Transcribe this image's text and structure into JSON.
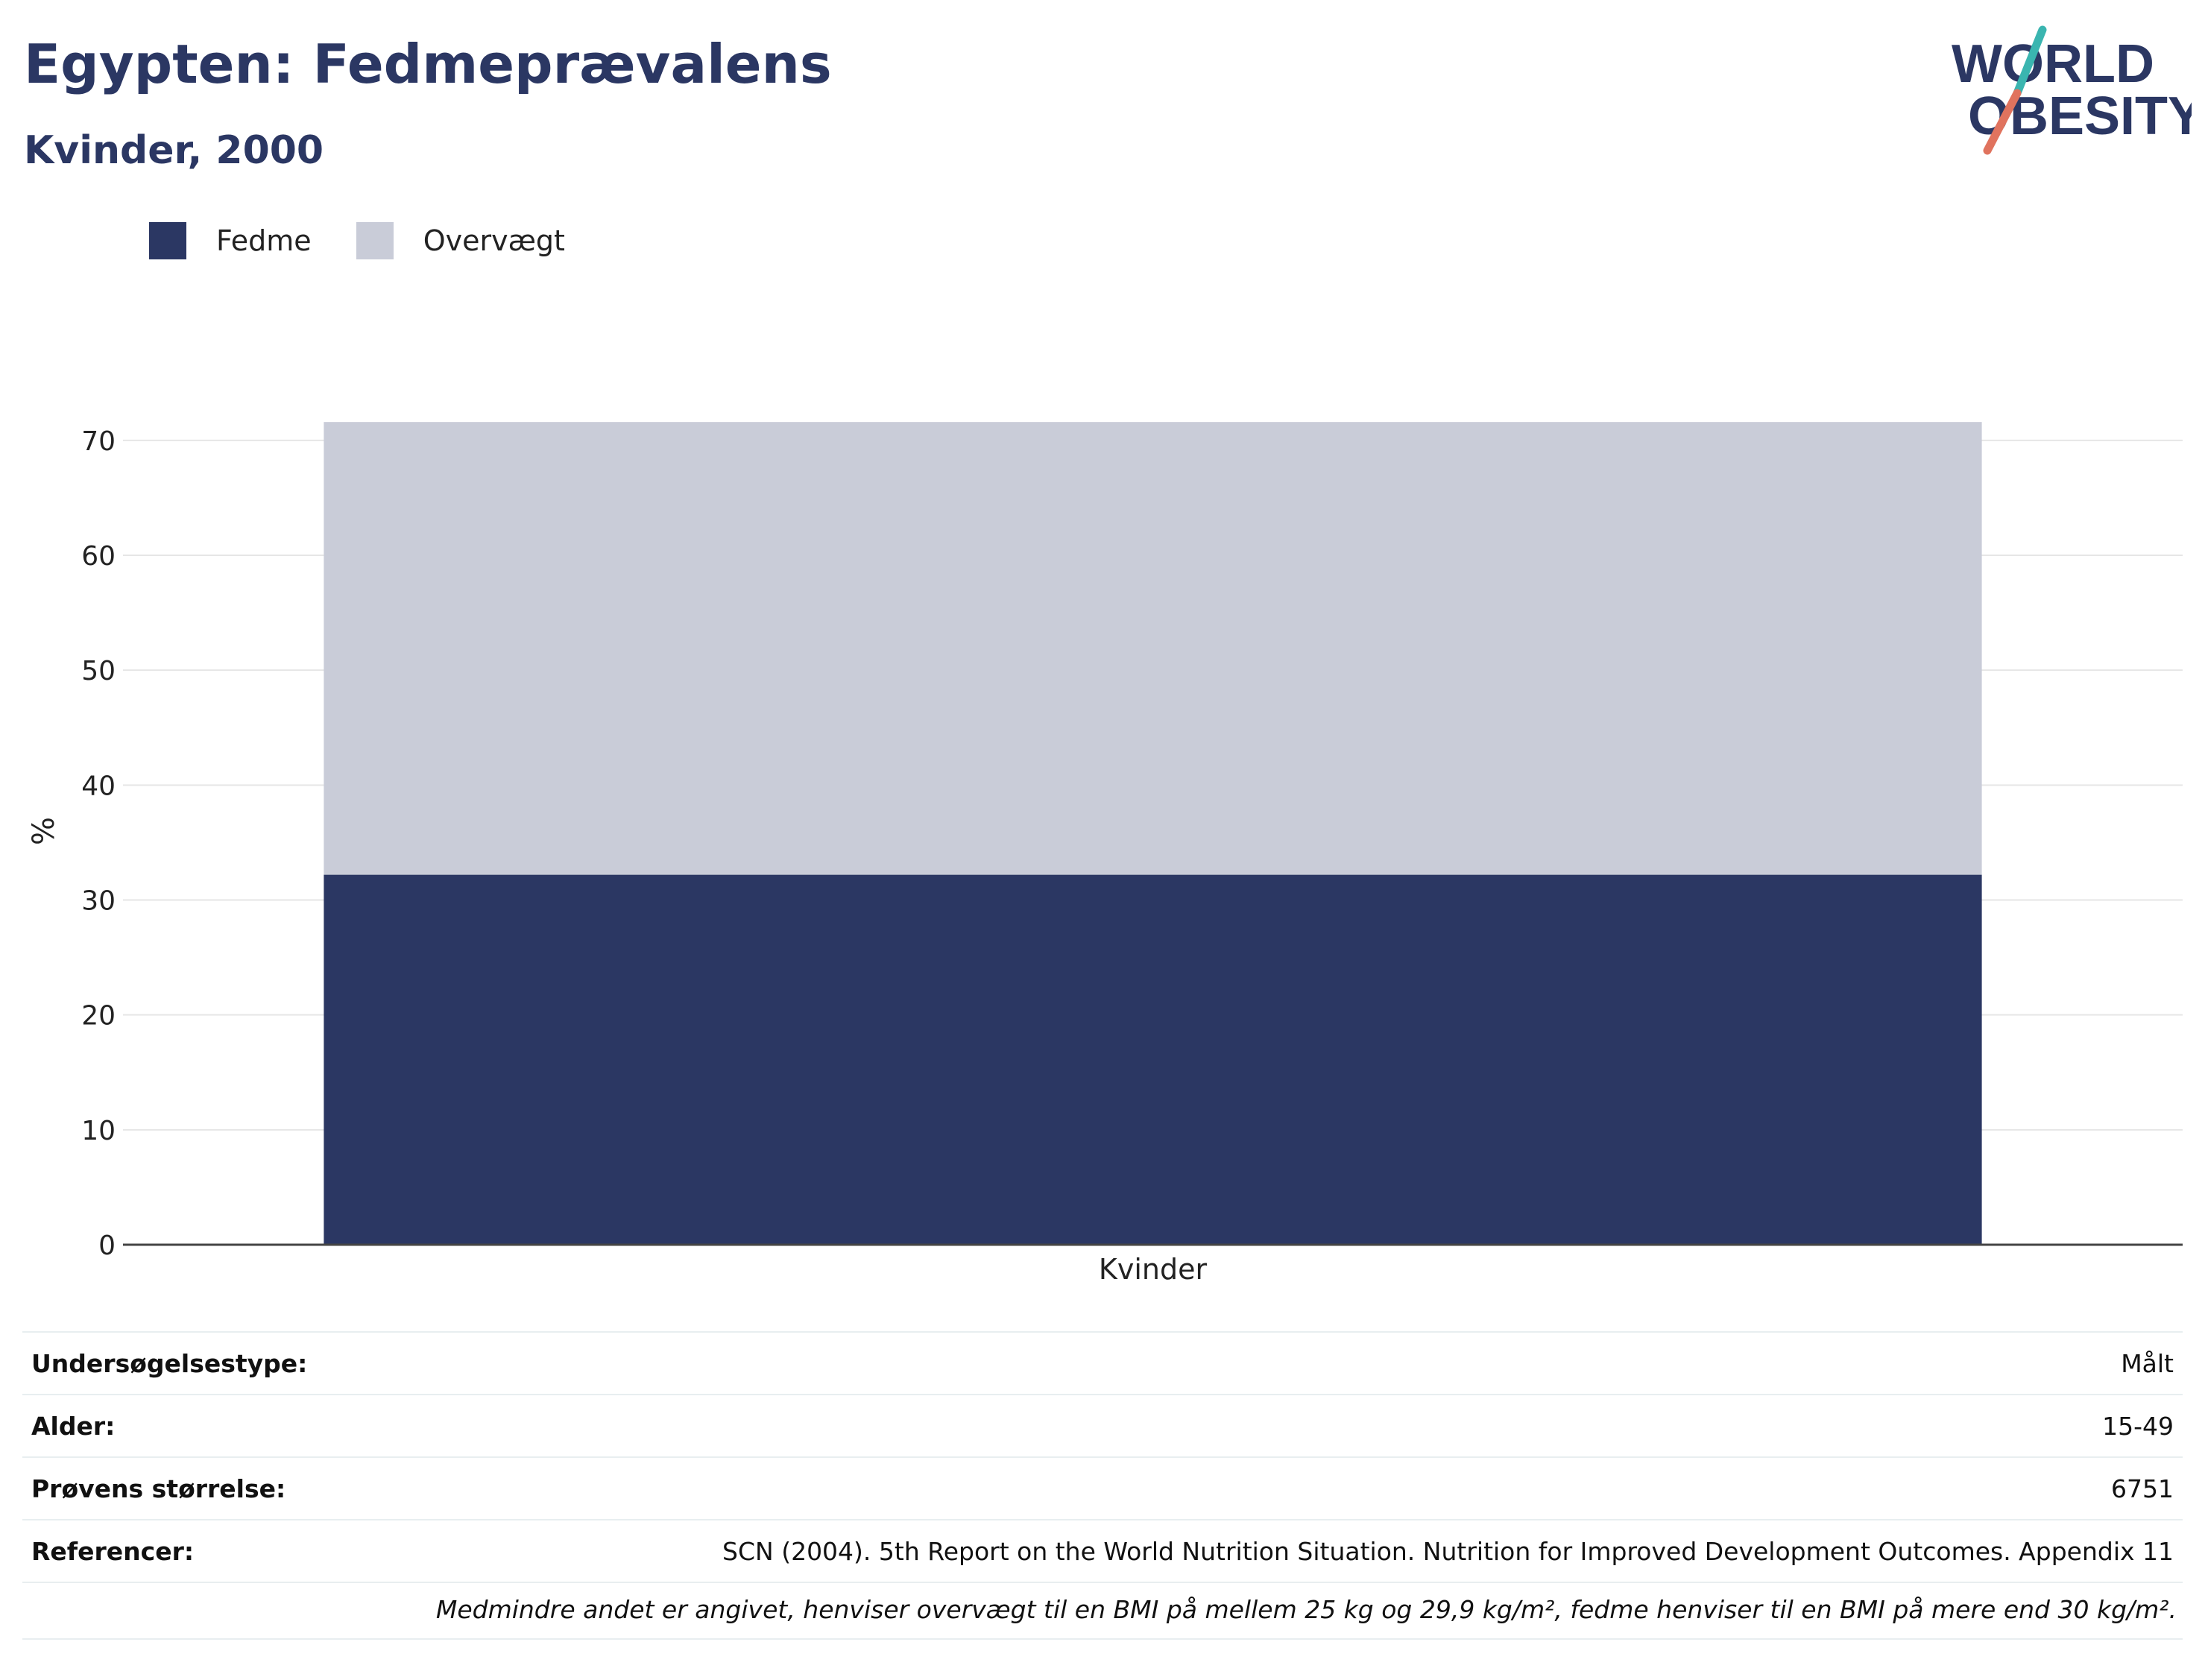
{
  "header": {
    "title": "Egypten: Fedmeprævalens",
    "subtitle": "Kvinder, 2000"
  },
  "logo": {
    "line1": "WORLD",
    "line2": "OBESITY"
  },
  "colors": {
    "fedme": "#2b3763",
    "overvaegt": "#c9ccd8",
    "text": "#2b3763"
  },
  "chart_data": {
    "type": "bar",
    "stacked": true,
    "categories": [
      "Kvinder"
    ],
    "series": [
      {
        "name": "Fedme",
        "values": [
          32.2
        ]
      },
      {
        "name": "Overvægt",
        "values": [
          39.4
        ]
      }
    ],
    "ylabel": "%",
    "xlabel": "",
    "ylim": [
      0,
      72
    ],
    "yticks": [
      0,
      10,
      20,
      30,
      40,
      50,
      60,
      70
    ],
    "grid": true,
    "legend_position": "top-left"
  },
  "info": [
    {
      "key": "Undersøgelsestype:",
      "value": "Målt"
    },
    {
      "key": "Alder:",
      "value": "15-49"
    },
    {
      "key": "Prøvens størrelse:",
      "value": "6751"
    },
    {
      "key": "Referencer:",
      "value": "SCN (2004). 5th Report on the World Nutrition Situation. Nutrition for Improved Development Outcomes. Appendix 11"
    }
  ],
  "note": "Medmindre andet er angivet, henviser overvægt til en BMI på mellem 25 kg og 29,9 kg/m², fedme henviser til en BMI på mere end 30 kg/m²."
}
